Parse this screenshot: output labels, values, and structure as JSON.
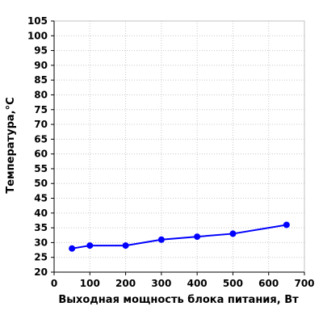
{
  "chart_data": {
    "type": "line",
    "title": "",
    "xlabel": "Выходная мощность блока питания, Вт",
    "ylabel": "Температура,°C",
    "xlim": [
      0,
      700
    ],
    "ylim": [
      20,
      105
    ],
    "x_ticks": [
      0,
      100,
      200,
      300,
      400,
      500,
      600,
      700
    ],
    "y_ticks": [
      20,
      25,
      30,
      35,
      40,
      45,
      50,
      55,
      60,
      65,
      70,
      75,
      80,
      85,
      90,
      95,
      100,
      105
    ],
    "grid": true,
    "legend": "none",
    "series": [
      {
        "color": "#0000ff",
        "x": [
          50,
          100,
          200,
          300,
          400,
          500,
          650
        ],
        "y": [
          28,
          29,
          29,
          31,
          32,
          33,
          36
        ]
      }
    ]
  }
}
